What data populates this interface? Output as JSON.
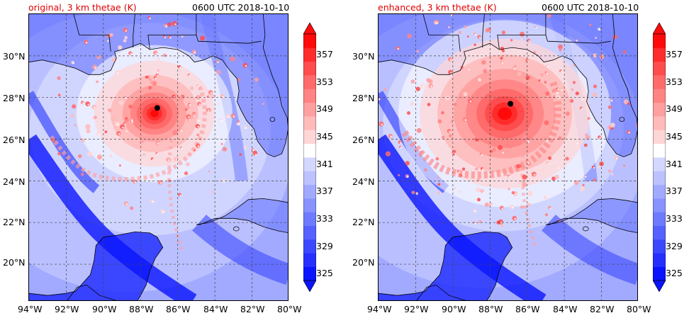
{
  "colormap": [
    "#0a14ff",
    "#2530ff",
    "#3c48ff",
    "#5562ff",
    "#6e7bff",
    "#8893ff",
    "#a1aaff",
    "#bcc2ff",
    "#d4d8ff",
    "#ffffff",
    "#ffd6d6",
    "#ffbaba",
    "#ffa0a0",
    "#ff8484",
    "#ff6a6a",
    "#ff4c4c",
    "#ff2c2c",
    "#ff0a0a"
  ],
  "land_color": "#5a68ff",
  "colorbar": {
    "ticks": [
      "325",
      "329",
      "333",
      "337",
      "341",
      "345",
      "349",
      "353",
      "357"
    ]
  },
  "axes": {
    "lat_labels": [
      "30°N",
      "28°N",
      "26°N",
      "24°N",
      "22°N",
      "20°N"
    ],
    "lon_labels": [
      "94°W",
      "92°W",
      "90°W",
      "88°W",
      "86°W",
      "84°W",
      "82°W",
      "80°W"
    ]
  },
  "panels": [
    {
      "title_left": "original, 3 km thetae (K)",
      "title_right": "0600 UTC 2018-10-10",
      "center": {
        "lon": -87.1,
        "lat": 27.5
      },
      "chart_data": {
        "type": "heatmap",
        "variable": "3 km thetae (K)",
        "x_range_lon": [
          -94,
          -80
        ],
        "y_range_lat": [
          18.2,
          32
        ],
        "colorbar_range": [
          325,
          357
        ]
      }
    },
    {
      "title_left": "enhanced, 3 km thetae (K)",
      "title_right": "0600 UTC 2018-10-10",
      "center": {
        "lon": -86.9,
        "lat": 27.7
      },
      "chart_data": {
        "type": "heatmap",
        "variable": "3 km thetae (K)",
        "x_range_lon": [
          -94,
          -80
        ],
        "y_range_lat": [
          18.2,
          32
        ],
        "colorbar_range": [
          325,
          357
        ]
      }
    }
  ]
}
